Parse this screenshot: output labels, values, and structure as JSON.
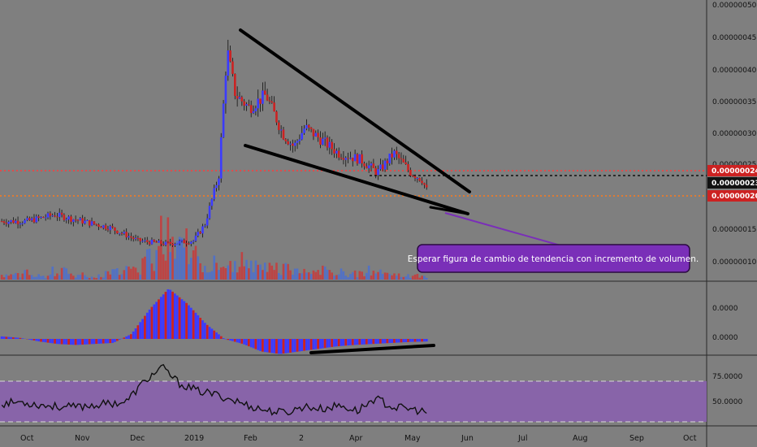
{
  "chart_data": [
    {
      "type": "candlestick",
      "panel": "price",
      "title": "",
      "ylabel": "",
      "ylim": [
        8e-08,
        5e-07
      ],
      "y_ticks": [
        "0.00000050",
        "0.00000045",
        "0.00000040",
        "0.00000035",
        "0.00000030",
        "0.00000025",
        "0.00000020",
        "0.00000015",
        "0.00000010"
      ],
      "price_labels": {
        "upper": "0.00000024",
        "current": "0.00000023",
        "lower": "0.00000020"
      },
      "horizontal_lines": [
        {
          "value": 2.4e-07,
          "style": "dotted",
          "color": "#ff3b3b"
        },
        {
          "value": 2.31e-07,
          "style": "dotted",
          "color": "#111111"
        },
        {
          "value": 2e-07,
          "style": "dotted",
          "color": "#ff7a1a"
        }
      ],
      "series": [
        {
          "type": "close",
          "x_month_index": [
            0,
            0.5,
            1,
            1.5,
            2,
            2.5,
            3,
            3.2,
            3.45,
            3.6,
            3.75,
            4,
            4.3,
            4.6,
            4.8,
            5,
            5.3,
            5.6,
            6,
            6.3,
            6.6,
            6.9,
            7,
            7.1,
            7.2
          ],
          "values": [
            1.65e-07,
            1.75e-07,
            1.65e-07,
            1.55e-07,
            1.35e-07,
            1.3e-07,
            1.35e-07,
            1.6e-07,
            2.35e-07,
            4.3e-07,
            3.6e-07,
            3.4e-07,
            3.6e-07,
            3e-07,
            2.8e-07,
            3.1e-07,
            2.9e-07,
            2.7e-07,
            2.6e-07,
            2.4e-07,
            2.7e-07,
            2.4e-07,
            2.35e-07,
            2.3e-07,
            2.1e-07
          ]
        }
      ],
      "annotation": "Esperar figura de cambio de tendencia con incremento de volumen."
    },
    {
      "type": "bar",
      "panel": "volume",
      "values_relative": [
        0.1,
        0.15,
        0.08,
        0.2,
        0.12,
        0.1,
        0.18,
        0.25,
        0.6,
        1.0,
        0.7,
        0.4,
        0.3,
        0.35,
        0.25,
        0.3,
        0.2,
        0.18,
        0.15,
        0.12,
        0.2,
        0.1,
        0.08,
        0.06
      ]
    },
    {
      "type": "bar",
      "panel": "oscillator",
      "y_ticks": [
        "0.0000",
        "0.0000"
      ],
      "values_relative": [
        0.05,
        0.02,
        -0.05,
        -0.1,
        -0.12,
        -0.1,
        -0.08,
        0.1,
        0.6,
        1.0,
        0.7,
        0.3,
        0.0,
        -0.1,
        -0.25,
        -0.3,
        -0.25,
        -0.2,
        -0.15,
        -0.12,
        -0.1,
        -0.08,
        -0.06,
        -0.05
      ]
    },
    {
      "type": "line",
      "panel": "rsi",
      "y_ticks": [
        "75.0000",
        "50.0000"
      ],
      "ylim": [
        28,
        95
      ],
      "levels": [
        70,
        30
      ],
      "values": [
        48,
        50,
        47,
        45,
        44,
        46,
        48,
        50,
        72,
        88,
        70,
        62,
        58,
        52,
        45,
        40,
        38,
        45,
        42,
        46,
        40,
        54,
        44,
        42,
        38
      ]
    }
  ],
  "x_axis": {
    "labels": [
      "Oct",
      "Nov",
      "Dec",
      "2019",
      "Feb",
      "2",
      "Apr",
      "May",
      "Jun",
      "Jul",
      "Aug",
      "Sep",
      "Oct"
    ]
  },
  "annotation_box": {
    "text": "Esperar figura de cambio de tendencia con incremento de volumen."
  },
  "colors": {
    "background": "#7f7f7f",
    "candle_up": "#3b3bff",
    "candle_down": "#cc2222",
    "rsi_band": "#8a5fb0",
    "annotation_fill": "#7a2fb8"
  }
}
